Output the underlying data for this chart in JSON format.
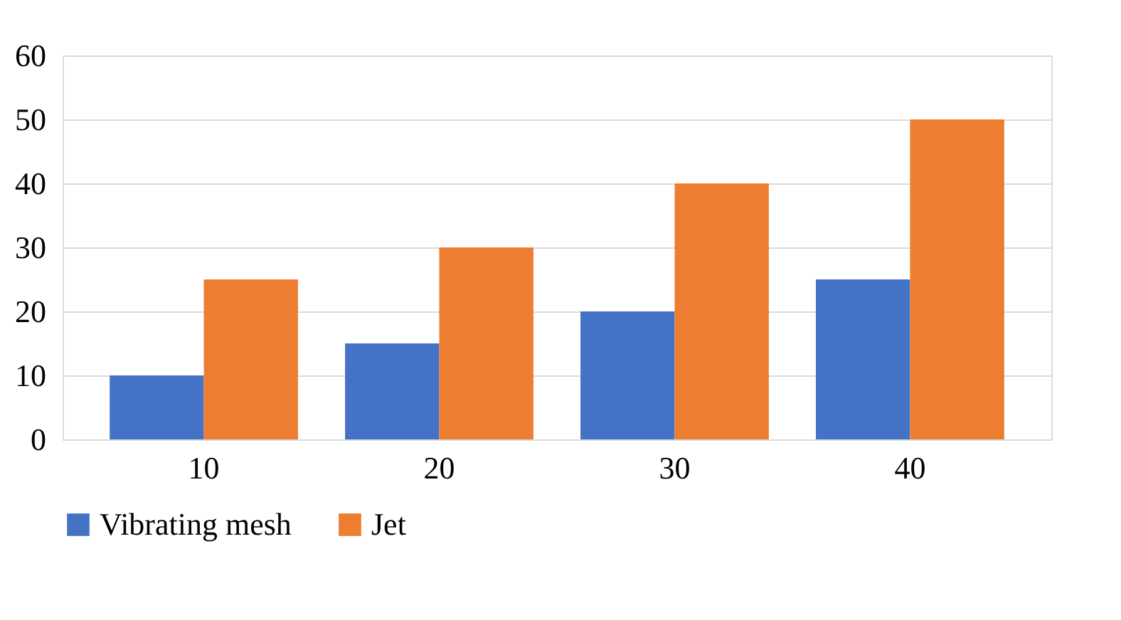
{
  "chart_data": {
    "type": "bar",
    "categories": [
      "10",
      "20",
      "30",
      "40"
    ],
    "series": [
      {
        "name": "Vibrating mesh",
        "color": "#4472c4",
        "values": [
          10,
          15,
          20,
          25
        ]
      },
      {
        "name": "Jet",
        "color": "#ed7d31",
        "values": [
          25,
          30,
          40,
          50
        ]
      }
    ],
    "ylim": [
      0,
      60
    ],
    "yticks": [
      0,
      10,
      20,
      30,
      40,
      50,
      60
    ],
    "grid": "y",
    "legend": "bottom"
  }
}
